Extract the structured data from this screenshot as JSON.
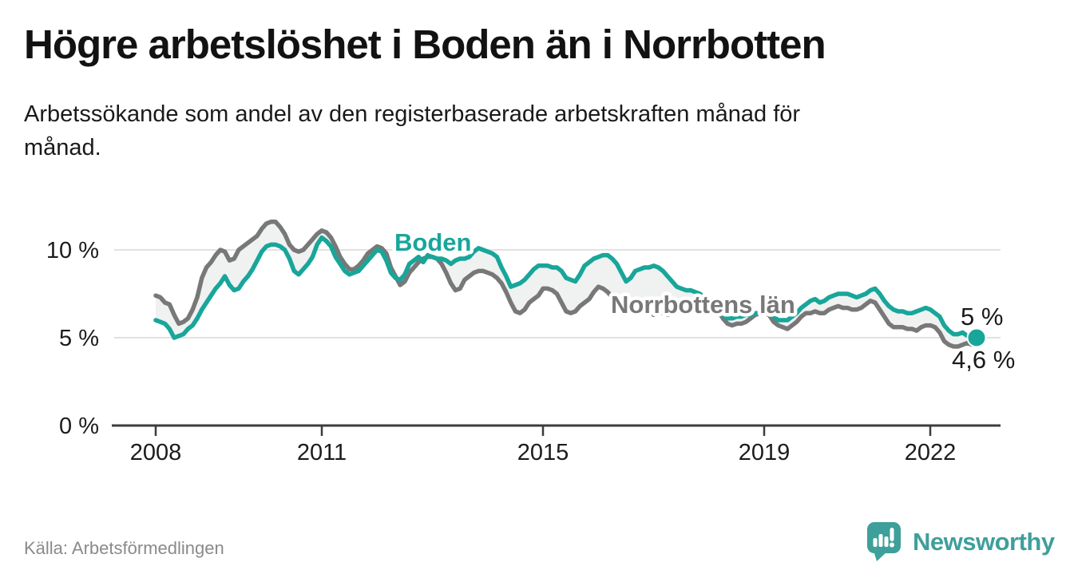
{
  "title": "Högre arbetslöshet i Boden än i Norrbotten",
  "subtitle_lines": [
    "Arbetssökande som andel av den registerbaserade arbetskraften månad för",
    "månad."
  ],
  "source": "Källa: Arbetsförmedlingen",
  "brand": {
    "name": "Newsworthy",
    "color": "#3f9f9a",
    "icon": "newsworthy-chart-bubble-icon"
  },
  "chart_data": {
    "type": "line",
    "x_unit": "month",
    "x_start": "2008-01",
    "x_end": "2022-11",
    "x_tick_labels": [
      "2008",
      "2011",
      "2015",
      "2019",
      "2022"
    ],
    "y_tick_labels": [
      "10 %",
      "5 %",
      "0 %"
    ],
    "y_tick_values": [
      10,
      5,
      0
    ],
    "ylim": [
      0,
      12.5
    ],
    "grid": "horizontal",
    "fill_between_color": "#f0f1f1",
    "end_labels": {
      "boden": "5 %",
      "norrbotten": "4,6 %"
    },
    "series": [
      {
        "name": "Norrbottens län",
        "color": "#787878",
        "values": [
          7.4,
          7.3,
          7.0,
          6.9,
          6.3,
          5.8,
          5.9,
          6.1,
          6.6,
          7.3,
          8.4,
          9.0,
          9.3,
          9.7,
          10.0,
          9.9,
          9.4,
          9.5,
          10.0,
          10.2,
          10.4,
          10.6,
          10.8,
          11.2,
          11.5,
          11.6,
          11.6,
          11.3,
          10.9,
          10.3,
          10.0,
          9.9,
          10.0,
          10.3,
          10.6,
          10.9,
          11.1,
          11.0,
          10.7,
          10.2,
          9.6,
          9.2,
          8.9,
          8.9,
          9.1,
          9.4,
          9.8,
          10.0,
          10.2,
          10.1,
          9.8,
          9.0,
          8.5,
          8.0,
          8.2,
          8.7,
          9.0,
          9.3,
          9.5,
          9.6,
          9.6,
          9.5,
          9.2,
          8.7,
          8.1,
          7.7,
          7.8,
          8.3,
          8.5,
          8.7,
          8.8,
          8.8,
          8.7,
          8.6,
          8.4,
          8.1,
          7.6,
          7.0,
          6.5,
          6.4,
          6.6,
          7.0,
          7.2,
          7.4,
          7.8,
          7.8,
          7.7,
          7.5,
          7.0,
          6.5,
          6.4,
          6.5,
          6.8,
          7.0,
          7.2,
          7.6,
          7.9,
          7.8,
          7.6,
          7.3,
          6.9,
          6.6,
          6.4,
          6.6,
          6.8,
          6.8,
          6.7,
          6.5,
          6.3,
          6.4,
          6.4,
          6.3,
          6.4,
          6.5,
          6.6,
          6.6,
          6.6,
          6.5,
          6.5,
          6.4,
          6.4,
          6.5,
          6.5,
          6.1,
          5.8,
          5.7,
          5.8,
          5.8,
          5.9,
          6.1,
          6.3,
          6.4,
          6.4,
          6.3,
          5.9,
          5.7,
          5.6,
          5.5,
          5.7,
          5.9,
          6.2,
          6.4,
          6.4,
          6.5,
          6.4,
          6.4,
          6.6,
          6.7,
          6.8,
          6.7,
          6.7,
          6.6,
          6.6,
          6.7,
          6.9,
          7.1,
          7.0,
          6.6,
          6.2,
          5.8,
          5.6,
          5.6,
          5.6,
          5.5,
          5.5,
          5.4,
          5.6,
          5.7,
          5.7,
          5.6,
          5.3,
          4.8,
          4.6,
          4.5,
          4.5,
          4.6,
          4.7,
          4.6,
          4.6
        ]
      },
      {
        "name": "Boden",
        "color": "#18a69a",
        "end_dot": true,
        "values": [
          6.0,
          5.9,
          5.8,
          5.5,
          5.0,
          5.1,
          5.2,
          5.5,
          5.7,
          6.1,
          6.6,
          7.0,
          7.4,
          7.8,
          8.1,
          8.5,
          8.0,
          7.7,
          7.8,
          8.2,
          8.5,
          8.9,
          9.4,
          9.9,
          10.2,
          10.3,
          10.3,
          10.2,
          10.0,
          9.5,
          8.8,
          8.6,
          8.9,
          9.2,
          9.6,
          10.3,
          10.7,
          10.5,
          10.2,
          9.6,
          9.2,
          8.8,
          8.6,
          8.7,
          8.8,
          9.1,
          9.4,
          9.7,
          10.0,
          9.9,
          9.4,
          8.7,
          8.4,
          8.3,
          8.6,
          9.2,
          9.4,
          9.6,
          9.3,
          9.7,
          9.6,
          9.5,
          9.5,
          9.4,
          9.2,
          9.4,
          9.5,
          9.5,
          9.6,
          9.9,
          10.1,
          10.0,
          9.9,
          9.8,
          9.6,
          9.0,
          8.5,
          7.9,
          8.0,
          8.1,
          8.3,
          8.6,
          8.9,
          9.1,
          9.1,
          9.1,
          9.0,
          9.0,
          8.8,
          8.4,
          8.3,
          8.2,
          8.6,
          9.1,
          9.3,
          9.5,
          9.6,
          9.7,
          9.7,
          9.5,
          9.2,
          8.7,
          8.2,
          8.4,
          8.8,
          8.9,
          9.0,
          9.0,
          9.1,
          9.0,
          8.8,
          8.5,
          8.2,
          7.9,
          7.8,
          7.7,
          7.7,
          7.6,
          7.5,
          7.3,
          7.0,
          6.7,
          6.5,
          6.3,
          6.1,
          6.1,
          6.2,
          6.2,
          6.3,
          6.3,
          6.4,
          6.4,
          6.5,
          6.5,
          6.2,
          6.0,
          6.0,
          6.0,
          6.2,
          6.4,
          6.7,
          6.9,
          7.1,
          7.2,
          7.0,
          7.1,
          7.3,
          7.4,
          7.5,
          7.5,
          7.5,
          7.4,
          7.3,
          7.4,
          7.5,
          7.7,
          7.8,
          7.5,
          7.1,
          6.8,
          6.6,
          6.5,
          6.5,
          6.4,
          6.4,
          6.5,
          6.6,
          6.7,
          6.6,
          6.4,
          6.2,
          5.7,
          5.4,
          5.2,
          5.2,
          5.3,
          5.1,
          5.0,
          5.0
        ]
      }
    ]
  }
}
